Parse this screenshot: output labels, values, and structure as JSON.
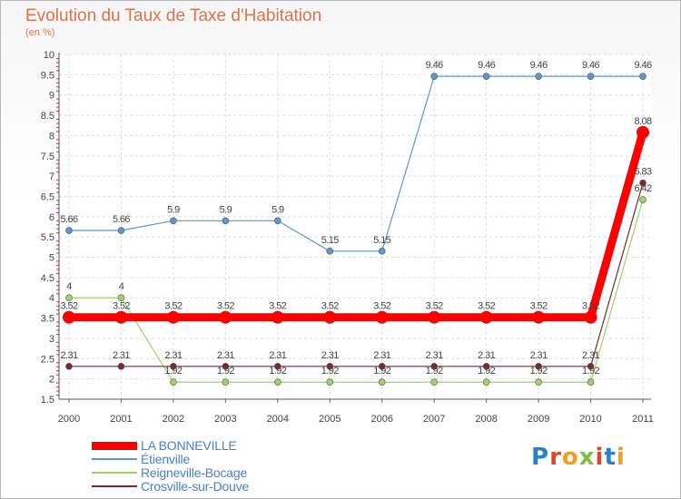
{
  "title": "Evolution du Taux de Taxe d'Habitation",
  "subtitle": "(en %)",
  "logo": {
    "text": "Proxiti",
    "letter_colors": [
      "#2a7fcf",
      "#e0442b",
      "#f0a020",
      "#7cc043",
      "#e0442b",
      "#2a7fcf",
      "#f0a020"
    ]
  },
  "chart_data": {
    "type": "line",
    "title": "Evolution du Taux de Taxe d'Habitation",
    "ylabel": "(en %)",
    "xlabel": "",
    "ylim": [
      1.5,
      10
    ],
    "yticks": [
      "1.5",
      "2",
      "2.5",
      "3",
      "3.5",
      "4",
      "4.5",
      "5",
      "5.5",
      "6",
      "6.5",
      "7",
      "7.5",
      "8",
      "8.5",
      "9",
      "9.5",
      "10"
    ],
    "grid": true,
    "legend_position": "bottom-left",
    "categories": [
      "2000",
      "2001",
      "2002",
      "2003",
      "2004",
      "2005",
      "2006",
      "2007",
      "2008",
      "2009",
      "2010",
      "2011"
    ],
    "series": [
      {
        "name": "LA BONNEVILLE",
        "color": "#ff0000",
        "values": [
          3.52,
          3.52,
          3.52,
          3.52,
          3.52,
          3.52,
          3.52,
          3.52,
          3.52,
          3.52,
          3.52,
          8.08
        ],
        "labels": [
          "3.52",
          "3.52",
          "3.52",
          "3.52",
          "3.52",
          "3.52",
          "3.52",
          "3.52",
          "3.52",
          "3.52",
          "3.52",
          "8.08"
        ]
      },
      {
        "name": "Étienville",
        "color": "#5e97c9",
        "values": [
          5.66,
          5.66,
          5.9,
          5.9,
          5.9,
          5.15,
          5.15,
          9.46,
          9.46,
          9.46,
          9.46,
          9.46
        ],
        "labels": [
          "5.66",
          "5.66",
          "5.9",
          "5.9",
          "5.9",
          "5.15",
          "5.15",
          "9.46",
          "9.46",
          "9.46",
          "9.46",
          "9.46"
        ]
      },
      {
        "name": "Reigneville-Bocage",
        "color": "#9bd46b",
        "values": [
          4,
          4,
          1.92,
          1.92,
          1.92,
          1.92,
          1.92,
          1.92,
          1.92,
          1.92,
          1.92,
          6.42
        ],
        "labels": [
          "4",
          "4",
          "1.92",
          "1.92",
          "1.92",
          "1.92",
          "1.92",
          "1.92",
          "1.92",
          "1.92",
          "1.92",
          "6.42"
        ]
      },
      {
        "name": "Crosville-sur-Douve",
        "color": "#7a2a2a",
        "values": [
          2.31,
          2.31,
          2.31,
          2.31,
          2.31,
          2.31,
          2.31,
          2.31,
          2.31,
          2.31,
          2.31,
          6.83
        ],
        "labels": [
          "2.31",
          "2.31",
          "2.31",
          "2.31",
          "2.31",
          "2.31",
          "2.31",
          "2.31",
          "2.31",
          "2.31",
          "2.31",
          "6.83"
        ]
      }
    ]
  }
}
